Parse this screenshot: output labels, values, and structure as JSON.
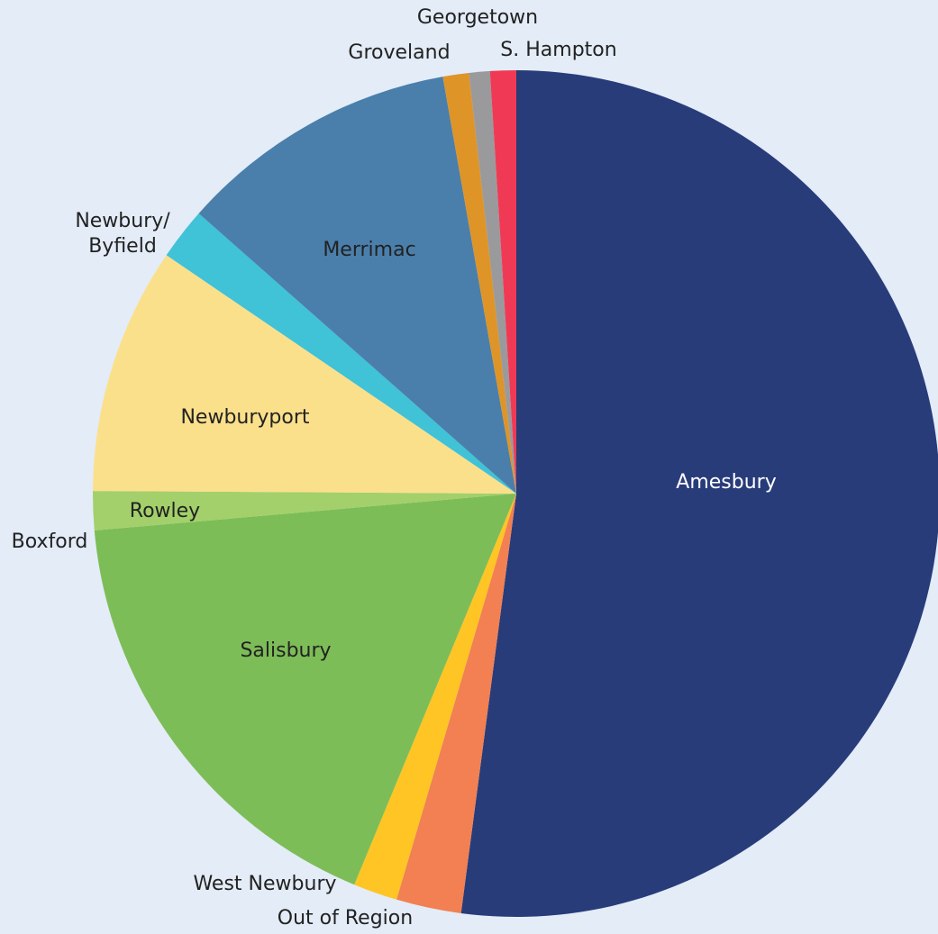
{
  "chart_data": {
    "type": "pie",
    "title": "",
    "legend": "none",
    "slices": [
      {
        "label": "Amesbury",
        "value": 52.5,
        "color": "#283c7a",
        "label_color": "#ffffff",
        "label_inside": true
      },
      {
        "label": "Out of Region",
        "value": 2.5,
        "color": "#f28052",
        "label_color": "#222222",
        "label_inside": false
      },
      {
        "label": "West Newbury",
        "value": 1.7,
        "color": "#fec524",
        "label_color": "#222222",
        "label_inside": false
      },
      {
        "label": "Salisbury",
        "value": 17.5,
        "color": "#7dbd57",
        "label_color": "#222222",
        "label_inside": true
      },
      {
        "label": "Boxford",
        "value": 0.0,
        "color": "#7dbd57",
        "label_color": "#222222",
        "label_inside": false
      },
      {
        "label": "Rowley",
        "value": 1.5,
        "color": "#a3d06a",
        "label_color": "#222222",
        "label_inside": true
      },
      {
        "label": "Newburyport",
        "value": 9.5,
        "color": "#fbe08c",
        "label_color": "#222222",
        "label_inside": true
      },
      {
        "label": "Newbury/ Byfield",
        "value": 2.0,
        "color": "#40c2d7",
        "label_color": "#222222",
        "label_inside": false
      },
      {
        "label": "Merrimac",
        "value": 10.8,
        "color": "#4a7fab",
        "label_color": "#222222",
        "label_inside": true
      },
      {
        "label": "Groveland",
        "value": 1.0,
        "color": "#df9427",
        "label_color": "#222222",
        "label_inside": false
      },
      {
        "label": "Georgetown",
        "value": 0.8,
        "color": "#9a9a9c",
        "label_color": "#222222",
        "label_inside": false
      },
      {
        "label": "S. Hampton",
        "value": 1.0,
        "color": "#f03a55",
        "label_color": "#222222",
        "label_inside": false
      }
    ]
  }
}
